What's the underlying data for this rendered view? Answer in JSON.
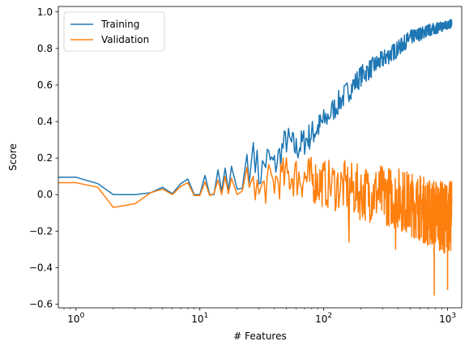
{
  "chart_data": {
    "type": "line",
    "xlabel": "# Features",
    "ylabel": "Score",
    "xscale": "log",
    "xlim": [
      0.72,
      1300
    ],
    "ylim": [
      -0.62,
      1.03
    ],
    "grid": false,
    "legend_position": "top-left",
    "x_ticks": [
      {
        "value": 1,
        "label": "10",
        "exp": "0"
      },
      {
        "value": 10,
        "label": "10",
        "exp": "1"
      },
      {
        "value": 100,
        "label": "10",
        "exp": "2"
      },
      {
        "value": 1000,
        "label": "10",
        "exp": "3"
      }
    ],
    "y_ticks": [
      {
        "value": -0.6,
        "label": "−0.6"
      },
      {
        "value": -0.4,
        "label": "−0.4"
      },
      {
        "value": -0.2,
        "label": "−0.2"
      },
      {
        "value": 0.0,
        "label": "0.0"
      },
      {
        "value": 0.2,
        "label": "0.2"
      },
      {
        "value": 0.4,
        "label": "0.4"
      },
      {
        "value": 0.6,
        "label": "0.6"
      },
      {
        "value": 0.8,
        "label": "0.8"
      },
      {
        "value": 1.0,
        "label": "1.0"
      }
    ],
    "series": [
      {
        "name": "Training",
        "color": "#1f77b4",
        "points": [
          [
            0.72,
            0.095
          ],
          [
            1,
            0.095
          ],
          [
            1.5,
            0.06
          ],
          [
            2,
            0.0
          ],
          [
            3,
            0.0
          ],
          [
            4,
            0.01
          ],
          [
            5,
            0.04
          ],
          [
            6,
            0.005
          ],
          [
            7,
            0.06
          ],
          [
            8,
            0.085
          ],
          [
            9,
            0.0
          ],
          [
            10,
            0.0
          ],
          [
            11,
            0.105
          ],
          [
            12,
            0.0
          ],
          [
            13,
            0.0
          ],
          [
            14,
            0.135
          ],
          [
            15,
            0.02
          ],
          [
            16,
            0.145
          ],
          [
            17,
            0.02
          ],
          [
            18,
            0.155
          ],
          [
            20,
            0.03
          ],
          [
            22,
            0.035
          ],
          [
            24,
            0.22
          ],
          [
            25,
            0.06
          ],
          [
            27,
            0.285
          ],
          [
            30,
            0.1
          ],
          [
            35,
            0.2
          ],
          [
            40,
            0.155
          ],
          [
            50,
            0.3
          ],
          [
            60,
            0.25
          ],
          [
            80,
            0.33
          ],
          [
            100,
            0.4
          ],
          [
            150,
            0.55
          ],
          [
            200,
            0.65
          ],
          [
            300,
            0.74
          ],
          [
            400,
            0.8
          ],
          [
            500,
            0.86
          ],
          [
            600,
            0.88
          ],
          [
            700,
            0.9
          ],
          [
            800,
            0.91
          ],
          [
            900,
            0.92
          ],
          [
            1000,
            0.93
          ],
          [
            1080,
            0.935
          ]
        ],
        "noise_band": {
          "from_x": 28,
          "amplitude_start": 0.1,
          "amplitude_end": 0.025
        }
      },
      {
        "name": "Validation",
        "color": "#ff7f0e",
        "points": [
          [
            0.72,
            0.065
          ],
          [
            1,
            0.065
          ],
          [
            1.5,
            0.04
          ],
          [
            2,
            -0.07
          ],
          [
            3,
            -0.05
          ],
          [
            4,
            0.01
          ],
          [
            5,
            0.03
          ],
          [
            6,
            0.0
          ],
          [
            7,
            0.045
          ],
          [
            8,
            0.065
          ],
          [
            9,
            -0.005
          ],
          [
            10,
            -0.005
          ],
          [
            11,
            0.07
          ],
          [
            12,
            -0.005
          ],
          [
            13,
            0.005
          ],
          [
            14,
            0.08
          ],
          [
            15,
            0.0
          ],
          [
            16,
            0.1
          ],
          [
            17,
            0.005
          ],
          [
            18,
            0.09
          ],
          [
            20,
            0.0
          ],
          [
            22,
            0.02
          ],
          [
            24,
            0.15
          ],
          [
            25,
            0.04
          ],
          [
            27,
            0.1
          ],
          [
            30,
            0.0
          ],
          [
            35,
            0.06
          ],
          [
            40,
            0.07
          ],
          [
            50,
            0.1
          ],
          [
            60,
            0.1
          ],
          [
            80,
            0.08
          ],
          [
            100,
            0.06
          ],
          [
            150,
            0.04
          ],
          [
            200,
            0.01
          ],
          [
            300,
            0.0
          ],
          [
            400,
            -0.02
          ],
          [
            500,
            -0.05
          ],
          [
            600,
            -0.07
          ],
          [
            700,
            -0.1
          ],
          [
            800,
            -0.1
          ],
          [
            900,
            -0.12
          ],
          [
            1000,
            -0.13
          ],
          [
            1080,
            -0.12
          ]
        ],
        "noise_band": {
          "from_x": 28,
          "amplitude_start": 0.1,
          "amplitude_end": 0.2
        },
        "spikes": [
          [
            160,
            -0.26
          ],
          [
            380,
            -0.3
          ],
          [
            780,
            -0.55
          ],
          [
            1000,
            -0.52
          ]
        ]
      }
    ]
  }
}
